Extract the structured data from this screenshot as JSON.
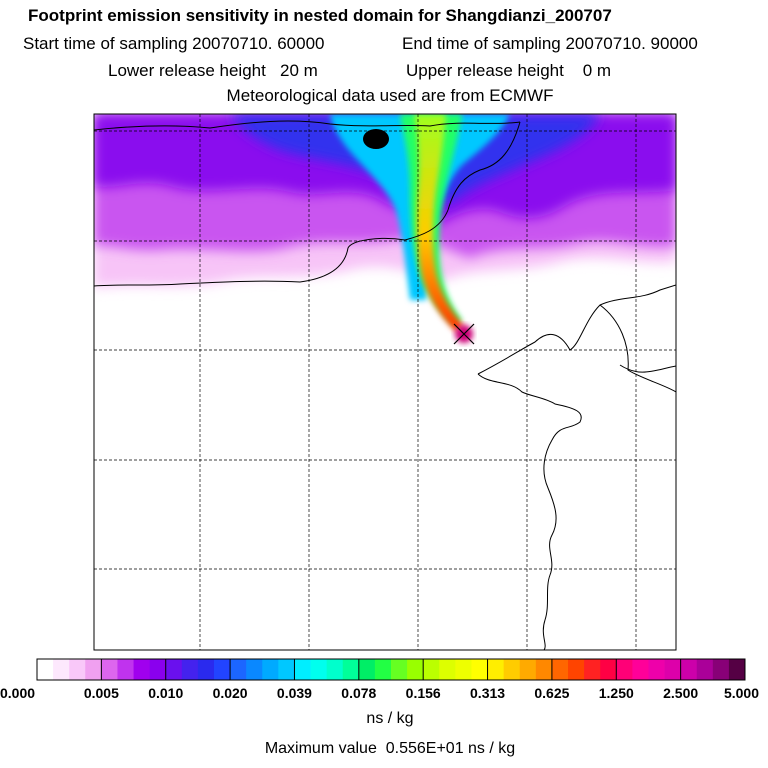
{
  "header": {
    "title": "Footprint emission sensitivity in nested domain for Shangdianzi_200707",
    "start_label": "Start time of sampling 20070710. 60000",
    "end_label": "End time of sampling 20070710. 90000",
    "lower_label": "Lower release height   20 m",
    "upper_label": "Upper release height    0 m",
    "met_label": "Meteorological data used are from ECMWF"
  },
  "chart_data": {
    "type": "heatmap",
    "title": "Footprint emission sensitivity in nested domain for Shangdianzi_200707",
    "colorbar": {
      "unit": "ns / kg",
      "tick_labels": [
        "0.000",
        "0.005",
        "0.010",
        "0.020",
        "0.039",
        "0.078",
        "0.156",
        "0.313",
        "0.625",
        "1.250",
        "2.500",
        "5.000"
      ],
      "tick_values": [
        0.0,
        0.005,
        0.01,
        0.02,
        0.039,
        0.078,
        0.156,
        0.313,
        0.625,
        1.25,
        2.5,
        5.0
      ],
      "colors": [
        [
          "#ffffff",
          "#fde8fd",
          "#f9c8f9",
          "#f0a0f0"
        ],
        [
          "#dd66ee",
          "#c033ee",
          "#a000ee",
          "#8a00ee"
        ],
        [
          "#6a10ee",
          "#4422ee",
          "#2a2aee",
          "#2244ff"
        ],
        [
          "#1c66ff",
          "#0a88ff",
          "#00aaff",
          "#00c8ff"
        ],
        [
          "#00eeff",
          "#00ffee",
          "#00ffcc",
          "#00ff99"
        ],
        [
          "#00ee66",
          "#22ff44",
          "#66ff22",
          "#99ff00"
        ],
        [
          "#bbff00",
          "#ddff00",
          "#eeff00",
          "#ffff00"
        ],
        [
          "#ffee00",
          "#ffcc00",
          "#ffaa00",
          "#ff8800"
        ],
        [
          "#ff6600",
          "#ff4400",
          "#ff2222",
          "#ff0044"
        ],
        [
          "#ff0077",
          "#ff0099",
          "#ee00aa",
          "#dd00aa"
        ],
        [
          "#cc00aa",
          "#aa0099",
          "#880077",
          "#550044"
        ]
      ]
    },
    "max_value_label": "Maximum value  0.556E+01 ns / kg",
    "release_site": "Shangdianzi",
    "grid": true
  }
}
